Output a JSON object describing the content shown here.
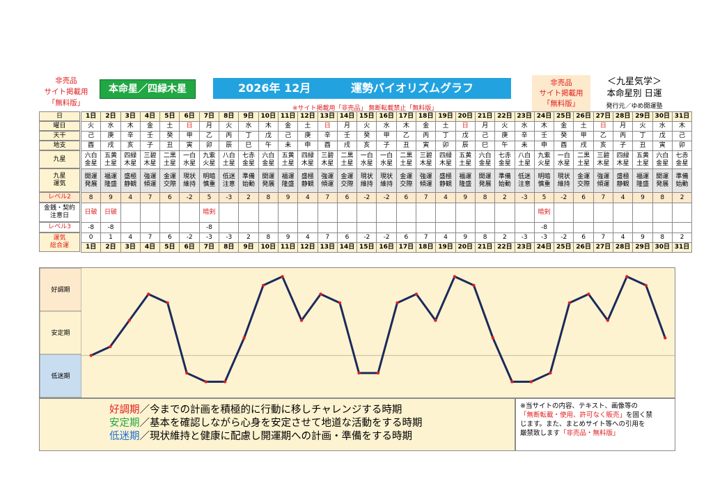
{
  "header": {
    "not_for_sale_lines": [
      "非売品",
      "サイト掲載用",
      "「無料版」"
    ],
    "honmei_label": "本命星／四緑木星",
    "title_year_month": "2026年 12月",
    "title_text": "運勢バイオリズムグラフ",
    "not_for_sale_right_lines": [
      "非売品",
      "サイト掲載用",
      "「無料版」"
    ],
    "kyusei_title": "＜九星気学＞",
    "kyusei_sub": "本命星別 日運",
    "publisher": "発行元／ゆめ開運塾",
    "notice": "※サイト掲載用「非売品」 無断転載禁止「無料版」"
  },
  "row_labels": {
    "day": "日",
    "weekday": "曜日",
    "tenkan": "天干",
    "chishi": "地支",
    "kyusei": "九星",
    "unki": "九星\n運気",
    "level2": "レベル2",
    "warning": "金銭・契約\n注意日",
    "level3": "レベル3",
    "total": "運気\n総合運"
  },
  "days": [
    {
      "d": "1日",
      "w": "火",
      "t": "己",
      "c": "酉",
      "k": "六白\n金星",
      "u": "開運\n発展",
      "l2": "8",
      "n": "日破",
      "l3": "-8",
      "tot": "0"
    },
    {
      "d": "2日",
      "w": "水",
      "t": "庚",
      "c": "戌",
      "k": "五黄\n土星",
      "u": "福運\n隆盛",
      "l2": "9",
      "n": "日破",
      "l3": "-8",
      "tot": "1"
    },
    {
      "d": "3日",
      "w": "木",
      "t": "辛",
      "c": "亥",
      "k": "四緑\n木星",
      "u": "盛極\n静観",
      "l2": "4",
      "n": "",
      "l3": "",
      "tot": "4"
    },
    {
      "d": "4日",
      "w": "金",
      "t": "壬",
      "c": "子",
      "k": "三碧\n木星",
      "u": "強運\n傾運",
      "l2": "7",
      "n": "",
      "l3": "",
      "tot": "7"
    },
    {
      "d": "5日",
      "w": "土",
      "t": "癸",
      "c": "丑",
      "k": "二黒\n土星",
      "u": "金運\n交際",
      "l2": "6",
      "n": "",
      "l3": "",
      "tot": "6"
    },
    {
      "d": "6日",
      "w": "日",
      "t": "甲",
      "c": "寅",
      "k": "一白\n水星",
      "u": "現状\n維持",
      "l2": "-2",
      "n": "",
      "l3": "",
      "tot": "-2"
    },
    {
      "d": "7日",
      "w": "月",
      "t": "乙",
      "c": "卯",
      "k": "九紫\n火星",
      "u": "明暗\n慎重",
      "l2": "5",
      "n": "暗剣",
      "l3": "-8",
      "tot": "-3"
    },
    {
      "d": "8日",
      "w": "火",
      "t": "丙",
      "c": "辰",
      "k": "八白\n土星",
      "u": "低迷\n注意",
      "l2": "-3",
      "n": "",
      "l3": "",
      "tot": "-3"
    },
    {
      "d": "9日",
      "w": "水",
      "t": "丁",
      "c": "巳",
      "k": "七赤\n金星",
      "u": "準備\n始動",
      "l2": "2",
      "n": "",
      "l3": "",
      "tot": "2"
    },
    {
      "d": "10日",
      "w": "木",
      "t": "戊",
      "c": "午",
      "k": "六白\n金星",
      "u": "開運\n発展",
      "l2": "8",
      "n": "",
      "l3": "",
      "tot": "8"
    },
    {
      "d": "11日",
      "w": "金",
      "t": "己",
      "c": "未",
      "k": "五黄\n土星",
      "u": "福運\n隆盛",
      "l2": "9",
      "n": "",
      "l3": "",
      "tot": "9"
    },
    {
      "d": "12日",
      "w": "土",
      "t": "庚",
      "c": "申",
      "k": "四緑\n木星",
      "u": "盛極\n静観",
      "l2": "4",
      "n": "",
      "l3": "",
      "tot": "4"
    },
    {
      "d": "13日",
      "w": "日",
      "t": "辛",
      "c": "酉",
      "k": "三碧\n木星",
      "u": "強運\n傾運",
      "l2": "7",
      "n": "",
      "l3": "",
      "tot": "7"
    },
    {
      "d": "14日",
      "w": "月",
      "t": "壬",
      "c": "戌",
      "k": "二黒\n土星",
      "u": "金運\n交際",
      "l2": "6",
      "n": "",
      "l3": "",
      "tot": "6"
    },
    {
      "d": "15日",
      "w": "火",
      "t": "癸",
      "c": "亥",
      "k": "一白\n水星",
      "u": "現状\n維持",
      "l2": "-2",
      "n": "",
      "l3": "",
      "tot": "-2"
    },
    {
      "d": "16日",
      "w": "水",
      "t": "甲",
      "c": "子",
      "k": "一白\n水星",
      "u": "現状\n維持",
      "l2": "-2",
      "n": "",
      "l3": "",
      "tot": "-2"
    },
    {
      "d": "17日",
      "w": "木",
      "t": "乙",
      "c": "丑",
      "k": "二黒\n土星",
      "u": "金運\n交際",
      "l2": "6",
      "n": "",
      "l3": "",
      "tot": "6"
    },
    {
      "d": "18日",
      "w": "金",
      "t": "丙",
      "c": "寅",
      "k": "三碧\n木星",
      "u": "強運\n傾運",
      "l2": "7",
      "n": "",
      "l3": "",
      "tot": "7"
    },
    {
      "d": "19日",
      "w": "土",
      "t": "丁",
      "c": "卯",
      "k": "四緑\n木星",
      "u": "盛極\n静観",
      "l2": "4",
      "n": "",
      "l3": "",
      "tot": "4"
    },
    {
      "d": "20日",
      "w": "日",
      "t": "戊",
      "c": "辰",
      "k": "五黄\n土星",
      "u": "福運\n隆盛",
      "l2": "9",
      "n": "",
      "l3": "",
      "tot": "9"
    },
    {
      "d": "21日",
      "w": "月",
      "t": "己",
      "c": "巳",
      "k": "六白\n金星",
      "u": "開運\n発展",
      "l2": "8",
      "n": "",
      "l3": "",
      "tot": "8"
    },
    {
      "d": "22日",
      "w": "火",
      "t": "庚",
      "c": "午",
      "k": "七赤\n金星",
      "u": "準備\n始動",
      "l2": "2",
      "n": "",
      "l3": "",
      "tot": "2"
    },
    {
      "d": "23日",
      "w": "水",
      "t": "辛",
      "c": "未",
      "k": "八白\n土星",
      "u": "低迷\n注意",
      "l2": "-3",
      "n": "",
      "l3": "",
      "tot": "-3"
    },
    {
      "d": "24日",
      "w": "木",
      "t": "壬",
      "c": "申",
      "k": "九紫\n火星",
      "u": "明暗\n慎重",
      "l2": "5",
      "n": "暗剣",
      "l3": "-8",
      "tot": "-3"
    },
    {
      "d": "25日",
      "w": "金",
      "t": "癸",
      "c": "酉",
      "k": "一白\n水星",
      "u": "現状\n維持",
      "l2": "-2",
      "n": "",
      "l3": "",
      "tot": "-2"
    },
    {
      "d": "26日",
      "w": "土",
      "t": "甲",
      "c": "戌",
      "k": "二黒\n土星",
      "u": "金運\n交際",
      "l2": "6",
      "n": "",
      "l3": "",
      "tot": "6"
    },
    {
      "d": "27日",
      "w": "日",
      "t": "乙",
      "c": "亥",
      "k": "三碧\n木星",
      "u": "強運\n傾運",
      "l2": "7",
      "n": "",
      "l3": "",
      "tot": "7"
    },
    {
      "d": "28日",
      "w": "月",
      "t": "丙",
      "c": "子",
      "k": "四緑\n木星",
      "u": "盛極\n静観",
      "l2": "4",
      "n": "",
      "l3": "",
      "tot": "4"
    },
    {
      "d": "29日",
      "w": "火",
      "t": "丁",
      "c": "丑",
      "k": "五黄\n土星",
      "u": "福運\n隆盛",
      "l2": "9",
      "n": "",
      "l3": "",
      "tot": "9"
    },
    {
      "d": "30日",
      "w": "水",
      "t": "戊",
      "c": "寅",
      "k": "六白\n金星",
      "u": "開運\n発展",
      "l2": "8",
      "n": "",
      "l3": "",
      "tot": "8"
    },
    {
      "d": "31日",
      "w": "木",
      "t": "己",
      "c": "卯",
      "k": "七赤\n金星",
      "u": "準備\n始動",
      "l2": "2",
      "n": "",
      "l3": "",
      "tot": "2"
    }
  ],
  "bands": [
    {
      "label": "好調期",
      "color": "#fde9cc"
    },
    {
      "label": "安定期",
      "color": "#fdf3d0"
    },
    {
      "label": "低迷期",
      "color": "#c9ddf0"
    }
  ],
  "chart_data": {
    "type": "line",
    "x": [
      "1日",
      "2日",
      "3日",
      "4日",
      "5日",
      "6日",
      "7日",
      "8日",
      "9日",
      "10日",
      "11日",
      "12日",
      "13日",
      "14日",
      "15日",
      "16日",
      "17日",
      "18日",
      "19日",
      "20日",
      "21日",
      "22日",
      "23日",
      "24日",
      "25日",
      "26日",
      "27日",
      "28日",
      "29日",
      "30日",
      "31日"
    ],
    "series": [
      {
        "values": [
          0,
          1,
          4,
          7,
          6,
          -2,
          -3,
          -3,
          2,
          8,
          9,
          4,
          7,
          6,
          -2,
          -2,
          6,
          7,
          4,
          9,
          8,
          2,
          -3,
          -3,
          -2,
          6,
          7,
          4,
          9,
          8,
          2
        ]
      }
    ],
    "ylim": [
      -4,
      9.5
    ],
    "line_color": "#1b2a5c",
    "marker_color": "#e02020"
  },
  "legend": {
    "lines": [
      {
        "term": "好調期",
        "text": "／今までの計画を積極的に行動に移しチャレンジする時期"
      },
      {
        "term": "安定期",
        "text": "／基本を確認しながら心身を安定させて地道な活動をする時期"
      },
      {
        "term": "低迷期",
        "text": "／現状維持と健康に配慮し開運期への計画・準備をする時期"
      }
    ]
  },
  "copyright": {
    "line1": "※当サイトの内容、テキスト、画像等の",
    "line2_red": "「無断転載・使用、許可なく販売」",
    "line2_rest": "を固く禁",
    "line3": "じます。また、まとめサイト等への引用を",
    "line4_a": "厳禁致します",
    "line4_red": "「非売品・無料版」"
  }
}
